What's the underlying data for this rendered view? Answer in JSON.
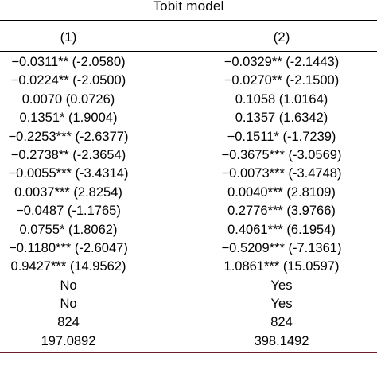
{
  "table": {
    "title": "Tobit model",
    "columns": [
      "(1)",
      "(2)"
    ],
    "rows": [
      [
        "−0.0311** (-2.0580)",
        "−0.0329** (-2.1443)"
      ],
      [
        "−0.0224** (-2.0500)",
        "−0.0270** (-2.1500)"
      ],
      [
        "0.0070 (0.0726)",
        "0.1058 (1.0164)"
      ],
      [
        "0.1351* (1.9004)",
        "0.1357 (1.6342)"
      ],
      [
        "−0.2253*** (-2.6377)",
        "−0.1511* (-1.7239)"
      ],
      [
        "−0.2738** (-2.3654)",
        "−0.3675*** (-3.0569)"
      ],
      [
        "−0.0055*** (-3.4314)",
        "−0.0073*** (-3.4748)"
      ],
      [
        "0.0037*** (2.8254)",
        "0.0040*** (2.8109)"
      ],
      [
        "−0.0487 (-1.1765)",
        "0.2776*** (3.9766)"
      ],
      [
        "0.0755* (1.8062)",
        "0.4061*** (6.1954)"
      ],
      [
        "−0.1180*** (-2.6047)",
        "−0.5209*** (-7.1361)"
      ],
      [
        "0.9427*** (14.9562)",
        "1.0861*** (15.0597)"
      ],
      [
        "No",
        "Yes"
      ],
      [
        "No",
        "Yes"
      ],
      [
        "824",
        "824"
      ],
      [
        "197.0892",
        "398.1492"
      ]
    ]
  }
}
